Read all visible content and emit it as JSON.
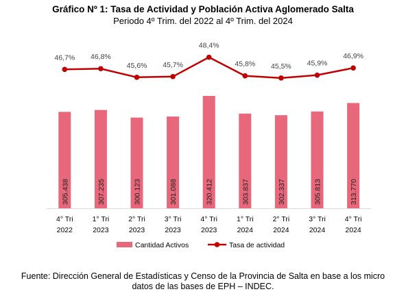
{
  "chart_data": {
    "type": "bar",
    "title": "Gráfico Nº 1: Tasa de Actividad y Población Activa Aglomerado Salta",
    "subtitle": "Periodo 4º Trim. del 2022 al 4º Trim. del 2024",
    "categories": [
      [
        "4° Tri",
        "2022"
      ],
      [
        "1° Tri",
        "2023"
      ],
      [
        "2° Tri",
        "2023"
      ],
      [
        "3° Tri",
        "2023"
      ],
      [
        "4° Tri",
        "2023"
      ],
      [
        "1° Tri",
        "2024"
      ],
      [
        "2° Tri",
        "2024"
      ],
      [
        "3° Tri",
        "2024"
      ],
      [
        "4° Tri",
        "2024"
      ]
    ],
    "series": [
      {
        "name": "Cantidad Activos",
        "type": "bar",
        "color": "#E8677A",
        "values": [
          305438,
          307235,
          300123,
          301088,
          320412,
          303837,
          302337,
          305813,
          313770
        ],
        "labels": [
          "305.438",
          "307.235",
          "300.123",
          "301.088",
          "320.412",
          "303.837",
          "302.337",
          "305.813",
          "313.770"
        ]
      },
      {
        "name": "Tasa de actividad",
        "type": "line",
        "color": "#C00000",
        "values": [
          46.7,
          46.8,
          45.6,
          45.7,
          48.4,
          45.8,
          45.5,
          45.9,
          46.9
        ],
        "labels": [
          "46,7%",
          "46,8%",
          "45,6%",
          "45,7%",
          "48,4%",
          "45,8%",
          "45,5%",
          "45,9%",
          "46,9%"
        ]
      }
    ],
    "legend_position": "bottom",
    "grid": false
  },
  "footer": {
    "line1": "Fuente: Dirección General de Estadísticas y Censo de la Provincia de Salta en base a los micro",
    "line2": "datos de las bases de EPH – INDEC."
  }
}
